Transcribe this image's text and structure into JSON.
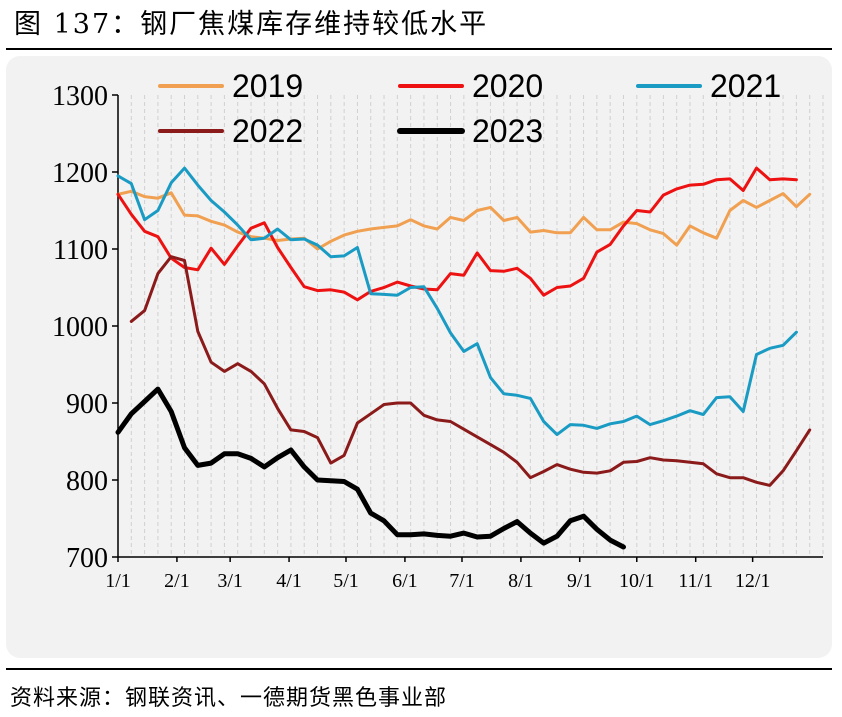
{
  "figure": {
    "title": "图 137：钢厂焦煤库存维持较低水平",
    "source": "资料来源：钢联资讯、一德期货黑色事业部"
  },
  "chart_data": {
    "type": "line",
    "title": "钢厂焦煤库存维持较低水平",
    "xlabel": "",
    "ylabel": "",
    "x_domain": [
      0,
      53
    ],
    "ylim": [
      700,
      1300
    ],
    "yticks": [
      700,
      800,
      900,
      1000,
      1100,
      1200,
      1300
    ],
    "xticks": [
      {
        "label": "1/1",
        "x": 0
      },
      {
        "label": "2/1",
        "x": 4.43
      },
      {
        "label": "3/1",
        "x": 8.43
      },
      {
        "label": "4/1",
        "x": 12.86
      },
      {
        "label": "5/1",
        "x": 17.14
      },
      {
        "label": "6/1",
        "x": 21.57
      },
      {
        "label": "7/1",
        "x": 25.86
      },
      {
        "label": "8/1",
        "x": 30.29
      },
      {
        "label": "9/1",
        "x": 34.71
      },
      {
        "label": "10/1",
        "x": 39.0
      },
      {
        "label": "11/1",
        "x": 43.43
      },
      {
        "label": "12/1",
        "x": 47.71
      }
    ],
    "legend": [
      "2019",
      "2020",
      "2021",
      "2022",
      "2023"
    ],
    "series": [
      {
        "name": "2019",
        "color": "#F0A050",
        "width": 3,
        "start": 0,
        "values": [
          1171,
          1175,
          1168,
          1166,
          1173,
          1144,
          1143,
          1136,
          1131,
          1122,
          1116,
          1114,
          1111,
          1113,
          1114,
          1100,
          1110,
          1118,
          1123,
          1126,
          1128,
          1130,
          1138,
          1130,
          1126,
          1141,
          1137,
          1150,
          1154,
          1137,
          1141,
          1122,
          1124,
          1121,
          1121,
          1141,
          1125,
          1125,
          1135,
          1133,
          1125,
          1120,
          1105,
          1130,
          1121,
          1114,
          1150,
          1163,
          1154,
          1163,
          1172,
          1155,
          1171
        ]
      },
      {
        "name": "2020",
        "color": "#EE1111",
        "width": 3,
        "start": 0,
        "values": [
          1171,
          1145,
          1123,
          1116,
          1088,
          1076,
          1073,
          1101,
          1080,
          1104,
          1127,
          1134,
          1102,
          1076,
          1051,
          1046,
          1047,
          1044,
          1034,
          1045,
          1050,
          1057,
          1052,
          1048,
          1047,
          1068,
          1066,
          1095,
          1072,
          1071,
          1075,
          1062,
          1040,
          1050,
          1052,
          1062,
          1096,
          1106,
          1130,
          1150,
          1148,
          1170,
          1178,
          1183,
          1184,
          1190,
          1191,
          1176,
          1205,
          1190,
          1191,
          1190
        ]
      },
      {
        "name": "2021",
        "color": "#1A9BC4",
        "width": 3,
        "start": 0,
        "values": [
          1195,
          1185,
          1138,
          1150,
          1186,
          1205,
          1183,
          1163,
          1148,
          1131,
          1112,
          1114,
          1126,
          1112,
          1113,
          1105,
          1090,
          1091,
          1102,
          1042,
          1041,
          1040,
          1050,
          1051,
          1023,
          991,
          967,
          977,
          933,
          912,
          910,
          906,
          876,
          859,
          872,
          871,
          867,
          873,
          876,
          883,
          872,
          877,
          883,
          890,
          885,
          907,
          908,
          889,
          963,
          971,
          975,
          992
        ]
      },
      {
        "name": "2022",
        "color": "#8B1A1A",
        "width": 3,
        "start": 1,
        "values": [
          1006,
          1020,
          1068,
          1090,
          1085,
          993,
          953,
          941,
          951,
          941,
          925,
          893,
          865,
          863,
          855,
          822,
          832,
          874,
          886,
          898,
          900,
          900,
          884,
          878,
          876,
          866,
          856,
          846,
          836,
          823,
          803,
          811,
          820,
          814,
          810,
          809,
          812,
          823,
          824,
          829,
          826,
          825,
          823,
          821,
          808,
          803,
          803,
          797,
          793,
          812,
          838,
          865
        ]
      },
      {
        "name": "2023",
        "color": "#000000",
        "width": 5,
        "start": 0,
        "values": [
          862,
          886,
          902,
          918,
          889,
          842,
          819,
          822,
          834,
          834,
          828,
          817,
          829,
          839,
          817,
          800,
          799,
          798,
          788,
          757,
          747,
          729,
          729,
          730,
          728,
          727,
          731,
          726,
          727,
          737,
          746,
          731,
          718,
          727,
          747,
          753,
          736,
          722,
          713
        ]
      }
    ]
  }
}
